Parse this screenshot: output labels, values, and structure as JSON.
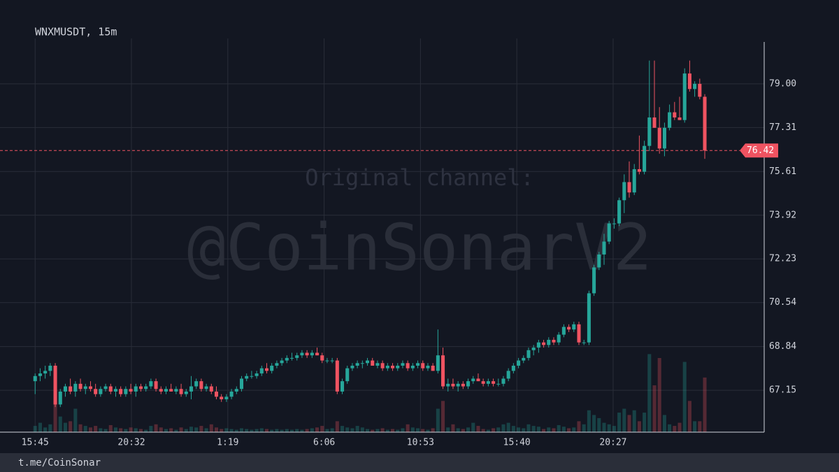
{
  "chart_data": {
    "type": "candlestick",
    "title": "WNXMUSDT, 15m",
    "watermark": "Original channel:",
    "watermark_handle": "@CoinSonarV2",
    "footer": "t.me/CoinSonar",
    "last_price": 76.42,
    "up_color": "#26a69a",
    "down_color": "#ef5361",
    "grid": true,
    "ylim": [
      65.53,
      80.62
    ],
    "yticks": [
      67.15,
      68.84,
      70.54,
      72.23,
      73.92,
      75.61,
      77.31,
      {
        "value": 79,
        "label": "79.00"
      }
    ],
    "xlim": [
      -4.2,
      144.8
    ],
    "xticks": [
      {
        "value": 0,
        "label": "15:45"
      },
      {
        "value": 19.13,
        "label": "20:32"
      },
      {
        "value": 38.27,
        "label": "1:19"
      },
      {
        "value": 57.4,
        "label": "6:06"
      },
      {
        "value": 76.53,
        "label": "10:53"
      },
      {
        "value": 95.67,
        "label": "15:40"
      },
      {
        "value": 114.8,
        "label": "20:27"
      }
    ],
    "volume_ylim": [
      0,
      500
    ],
    "open": [
      67.5,
      67.7,
      67.8,
      67.9,
      68.1,
      66.6,
      67.1,
      67.3,
      67.1,
      67.4,
      67.2,
      67.3,
      67.2,
      67.0,
      67.2,
      67.3,
      67.1,
      67.2,
      67.0,
      67.2,
      67.1,
      67.3,
      67.2,
      67.3,
      67.5,
      67.2,
      67.1,
      67.2,
      67.1,
      67.2,
      67.0,
      67.1,
      67.3,
      67.5,
      67.2,
      67.3,
      67.1,
      66.9,
      66.8,
      66.9,
      67.1,
      67.2,
      67.6,
      67.7,
      67.7,
      67.8,
      68.0,
      67.9,
      68.1,
      68.2,
      68.3,
      68.4,
      68.4,
      68.5,
      68.6,
      68.5,
      68.6,
      68.5,
      68.3,
      68.3,
      68.3,
      67.1,
      67.5,
      68.0,
      68.1,
      68.2,
      68.2,
      68.3,
      68.1,
      68.2,
      68.0,
      68.1,
      68.0,
      68.1,
      68.2,
      68.0,
      68.1,
      68.2,
      68.0,
      68.1,
      67.9,
      68.5,
      67.3,
      67.4,
      67.3,
      67.4,
      67.3,
      67.5,
      67.6,
      67.5,
      67.4,
      67.5,
      67.4,
      67.4,
      67.6,
      67.9,
      68.1,
      68.3,
      68.4,
      68.7,
      68.8,
      69.0,
      68.9,
      69.1,
      69.0,
      69.3,
      69.6,
      69.5,
      69.7,
      69.0,
      69.0,
      70.9,
      71.9,
      72.4,
      72.9,
      73.6,
      73.6,
      74.5,
      75.2,
      74.8,
      75.7,
      75.6,
      76.6,
      77.7,
      77.3,
      76.5,
      77.3,
      77.9,
      77.7,
      77.6,
      79.4,
      78.8,
      79.0,
      78.5
    ],
    "high": [
      67.8,
      68.0,
      68.1,
      68.2,
      68.2,
      67.2,
      67.4,
      67.6,
      67.5,
      67.6,
      67.4,
      67.5,
      67.4,
      67.3,
      67.4,
      67.4,
      67.3,
      67.3,
      67.3,
      67.4,
      67.4,
      67.4,
      67.4,
      67.6,
      67.6,
      67.3,
      67.3,
      67.4,
      67.3,
      67.4,
      67.2,
      67.7,
      67.6,
      67.6,
      67.4,
      67.4,
      67.3,
      67.0,
      67.0,
      67.2,
      67.3,
      67.7,
      67.8,
      67.9,
      67.9,
      68.1,
      68.2,
      68.2,
      68.3,
      68.4,
      68.5,
      68.6,
      68.6,
      68.7,
      68.7,
      68.7,
      68.8,
      68.6,
      68.4,
      68.4,
      68.4,
      67.6,
      68.1,
      68.2,
      68.3,
      68.3,
      68.4,
      68.4,
      68.3,
      68.3,
      68.2,
      68.2,
      68.2,
      68.3,
      68.3,
      68.2,
      68.3,
      68.3,
      68.2,
      68.2,
      69.5,
      68.8,
      67.6,
      67.6,
      67.5,
      67.5,
      67.6,
      67.7,
      67.8,
      67.6,
      67.6,
      67.6,
      67.6,
      67.7,
      68.0,
      68.2,
      68.4,
      68.5,
      68.8,
      68.9,
      69.1,
      69.1,
      69.2,
      69.2,
      69.4,
      69.7,
      69.7,
      69.8,
      69.8,
      69.1,
      71.0,
      72.0,
      72.5,
      73.2,
      73.7,
      73.8,
      74.6,
      75.5,
      76.0,
      75.9,
      77.0,
      76.8,
      79.9,
      79.9,
      78.1,
      77.5,
      78.2,
      78.3,
      78.5,
      79.6,
      79.9,
      79.1,
      79.2,
      78.6
    ],
    "low": [
      67.0,
      67.5,
      67.6,
      67.7,
      66.5,
      66.5,
      66.9,
      67.0,
      66.9,
      67.1,
      67.0,
      67.1,
      66.9,
      66.9,
      67.1,
      67.0,
      66.9,
      66.9,
      66.9,
      67.0,
      66.9,
      67.1,
      67.1,
      67.2,
      67.1,
      67.0,
      67.0,
      67.1,
      67.0,
      66.9,
      66.9,
      66.8,
      67.2,
      67.1,
      67.1,
      67.0,
      66.8,
      66.7,
      66.7,
      66.8,
      67.0,
      67.1,
      67.5,
      67.6,
      67.6,
      67.7,
      67.8,
      67.8,
      68.0,
      68.1,
      68.2,
      68.3,
      68.3,
      68.4,
      68.4,
      68.4,
      68.5,
      68.2,
      68.2,
      68.2,
      67.0,
      67.0,
      67.4,
      67.9,
      68.0,
      68.0,
      68.1,
      68.1,
      68.0,
      67.9,
      67.9,
      67.9,
      67.9,
      68.0,
      67.9,
      67.9,
      68.0,
      67.9,
      67.9,
      67.9,
      67.8,
      67.2,
      67.1,
      67.2,
      67.1,
      67.2,
      67.2,
      67.4,
      67.5,
      67.3,
      67.3,
      67.3,
      67.3,
      67.3,
      67.5,
      67.8,
      68.0,
      68.2,
      68.3,
      68.5,
      68.6,
      68.8,
      68.8,
      68.9,
      68.9,
      69.2,
      69.4,
      69.4,
      68.9,
      68.9,
      68.9,
      70.8,
      71.8,
      72.0,
      72.8,
      73.4,
      73.5,
      74.0,
      74.6,
      74.7,
      75.5,
      75.5,
      76.4,
      77.3,
      76.3,
      76.2,
      77.2,
      77.6,
      77.6,
      77.5,
      78.7,
      78.5,
      78.4,
      76.1
    ],
    "close": [
      67.7,
      67.8,
      67.9,
      68.1,
      66.6,
      67.1,
      67.3,
      67.1,
      67.4,
      67.2,
      67.3,
      67.2,
      67.0,
      67.2,
      67.3,
      67.1,
      67.2,
      67.0,
      67.2,
      67.1,
      67.3,
      67.2,
      67.3,
      67.5,
      67.2,
      67.1,
      67.2,
      67.1,
      67.2,
      67.0,
      67.1,
      67.3,
      67.5,
      67.2,
      67.3,
      67.1,
      66.9,
      66.8,
      66.9,
      67.1,
      67.2,
      67.6,
      67.7,
      67.7,
      67.8,
      68.0,
      67.9,
      68.1,
      68.2,
      68.3,
      68.4,
      68.4,
      68.5,
      68.6,
      68.5,
      68.6,
      68.5,
      68.3,
      68.3,
      68.3,
      67.1,
      67.5,
      68.0,
      68.1,
      68.2,
      68.2,
      68.3,
      68.1,
      68.2,
      68.0,
      68.1,
      68.0,
      68.1,
      68.2,
      68.0,
      68.1,
      68.2,
      68.0,
      68.1,
      67.9,
      68.5,
      67.3,
      67.4,
      67.3,
      67.4,
      67.3,
      67.5,
      67.6,
      67.5,
      67.4,
      67.5,
      67.4,
      67.4,
      67.6,
      67.9,
      68.1,
      68.3,
      68.4,
      68.7,
      68.8,
      69.0,
      68.9,
      69.1,
      69.0,
      69.3,
      69.6,
      69.5,
      69.7,
      69.0,
      69.0,
      70.9,
      71.9,
      72.4,
      72.9,
      73.6,
      73.6,
      74.5,
      75.2,
      74.8,
      75.7,
      75.6,
      76.6,
      77.7,
      77.3,
      76.5,
      77.3,
      77.9,
      77.7,
      77.6,
      79.4,
      78.8,
      79.0,
      78.5,
      76.42
    ],
    "volume": [
      8,
      12,
      6,
      10,
      40,
      20,
      12,
      14,
      30,
      10,
      8,
      6,
      8,
      5,
      4,
      9,
      6,
      5,
      4,
      6,
      5,
      4,
      3,
      8,
      10,
      6,
      4,
      5,
      3,
      6,
      4,
      7,
      6,
      8,
      5,
      10,
      6,
      4,
      5,
      4,
      3,
      5,
      4,
      3,
      4,
      5,
      4,
      3,
      4,
      3,
      4,
      3,
      4,
      3,
      4,
      5,
      6,
      8,
      4,
      5,
      14,
      8,
      6,
      5,
      8,
      6,
      4,
      3,
      4,
      5,
      3,
      4,
      3,
      5,
      10,
      6,
      5,
      4,
      3,
      5,
      30,
      40,
      6,
      10,
      5,
      4,
      6,
      12,
      8,
      4,
      3,
      5,
      6,
      10,
      12,
      8,
      6,
      5,
      10,
      8,
      7,
      4,
      6,
      5,
      9,
      7,
      5,
      6,
      14,
      10,
      28,
      22,
      18,
      12,
      10,
      8,
      25,
      30,
      22,
      28,
      14,
      25,
      100,
      60,
      95,
      22,
      10,
      8,
      12,
      90,
      40,
      14,
      14,
      70
    ]
  }
}
